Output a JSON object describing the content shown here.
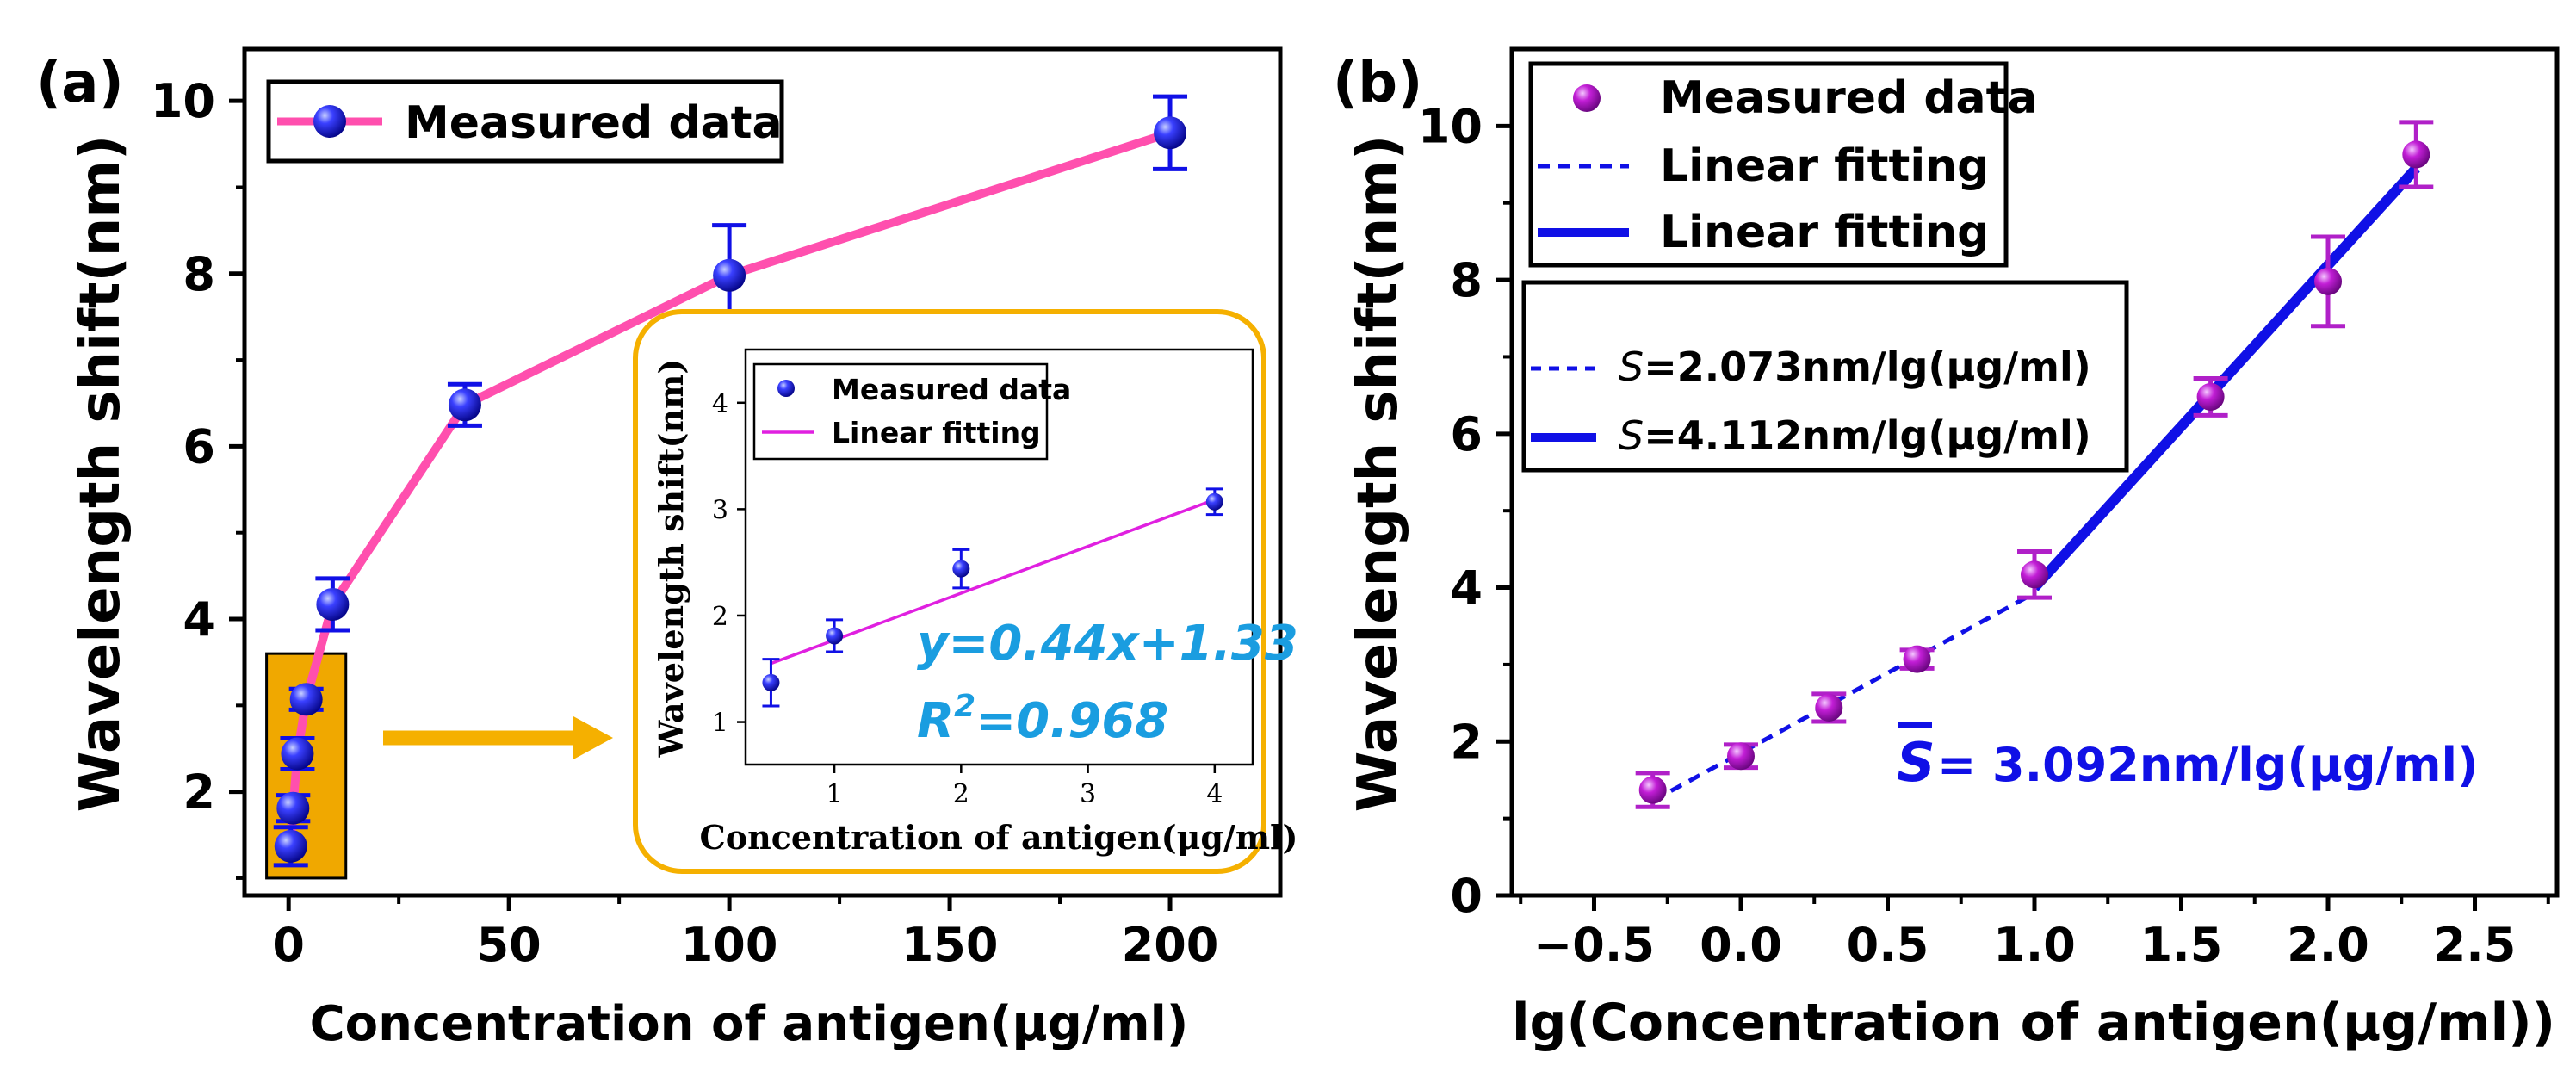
{
  "colors": {
    "pink": "#ff4fae",
    "blue": "#1010e6",
    "magenta": "#e020e0",
    "purple": "#b020c8",
    "orange": "#f5b000",
    "cyan": "#1a9de0",
    "fill_orange": "#f0a800"
  },
  "chart_data": [
    {
      "id": "a",
      "panel_label": "(a)",
      "type": "line",
      "xlabel": "Concentration of antigen(μg/ml)",
      "ylabel": "Wavelength shift(nm)",
      "xlim": [
        -10,
        225
      ],
      "ylim": [
        0.8,
        10.6
      ],
      "xticks": [
        0,
        50,
        100,
        150,
        200
      ],
      "yticks": [
        2,
        4,
        6,
        8,
        10
      ],
      "grid": false,
      "legend": {
        "position": "top-left",
        "entries": [
          "Measured data"
        ]
      },
      "series": [
        {
          "name": "Measured data",
          "x": [
            0.5,
            1,
            2,
            4,
            10,
            40,
            100,
            200
          ],
          "y": [
            1.37,
            1.81,
            2.44,
            3.07,
            4.17,
            6.48,
            7.98,
            9.63
          ],
          "err": [
            0.22,
            0.15,
            0.18,
            0.12,
            0.3,
            0.24,
            0.58,
            0.42
          ]
        }
      ],
      "highlight_box": {
        "x_range": [
          -5,
          13
        ],
        "y_range": [
          1.0,
          3.6
        ]
      },
      "inset": {
        "type": "scatter",
        "xlabel": "Concentration of antigen(μg/ml)",
        "ylabel": "Wavelength shift(nm)",
        "xlim": [
          0.3,
          4.3
        ],
        "ylim": [
          0.6,
          4.5
        ],
        "xticks": [
          1,
          2,
          3,
          4
        ],
        "yticks": [
          1,
          2,
          3,
          4
        ],
        "legend_entries": [
          "Measured data",
          "Linear fitting"
        ],
        "points": {
          "x": [
            0.5,
            1,
            2,
            4
          ],
          "y": [
            1.37,
            1.81,
            2.44,
            3.07
          ],
          "err": [
            0.22,
            0.15,
            0.18,
            0.12
          ]
        },
        "fit": {
          "slope": 0.44,
          "intercept": 1.33,
          "x_range": [
            0.5,
            4
          ]
        },
        "equation": {
          "eq_text": "y=0.44x+1.33",
          "r_prefix": "R",
          "r_exp": "2",
          "r_value": "=0.968"
        }
      }
    },
    {
      "id": "b",
      "panel_label": "(b)",
      "type": "scatter",
      "xlabel": "lg(Concentration of antigen(μg/ml))",
      "ylabel": "Wavelength shift(nm)",
      "xlim": [
        -0.78,
        2.78
      ],
      "ylim": [
        0,
        11
      ],
      "xticks": [
        -0.5,
        0.0,
        0.5,
        1.0,
        1.5,
        2.0,
        2.5
      ],
      "xtick_labels": [
        "−0.5",
        "0.0",
        "0.5",
        "1.0",
        "1.5",
        "2.0",
        "2.5"
      ],
      "yticks": [
        0,
        2,
        4,
        6,
        8,
        10
      ],
      "grid": false,
      "legend": {
        "position": "top-left",
        "entries": [
          "Measured data",
          "Linear fitting",
          "Linear fitting"
        ]
      },
      "legend2": {
        "entries": [
          {
            "italic": "S",
            "text": "=2.073nm/lg(μg/ml)"
          },
          {
            "italic": "S",
            "text": "=4.112nm/lg(μg/ml)"
          }
        ]
      },
      "series": [
        {
          "name": "Measured data",
          "x": [
            -0.3,
            0.0,
            0.3,
            0.6,
            1.0,
            1.6,
            2.0,
            2.3
          ],
          "y": [
            1.37,
            1.81,
            2.44,
            3.07,
            4.17,
            6.48,
            7.98,
            9.63
          ],
          "err": [
            0.22,
            0.15,
            0.18,
            0.12,
            0.3,
            0.24,
            0.58,
            0.42
          ]
        }
      ],
      "fits": [
        {
          "name": "Linear fitting (dashed)",
          "style": "dashed",
          "x": [
            -0.3,
            1.0
          ],
          "y": [
            1.23,
            3.93
          ]
        },
        {
          "name": "Linear fitting (solid)",
          "style": "solid",
          "x": [
            1.0,
            2.3
          ],
          "y": [
            4.0,
            9.45
          ]
        }
      ],
      "annotation": {
        "sbar": "S",
        "text": "= 3.092nm/lg(μg/ml)"
      }
    }
  ]
}
